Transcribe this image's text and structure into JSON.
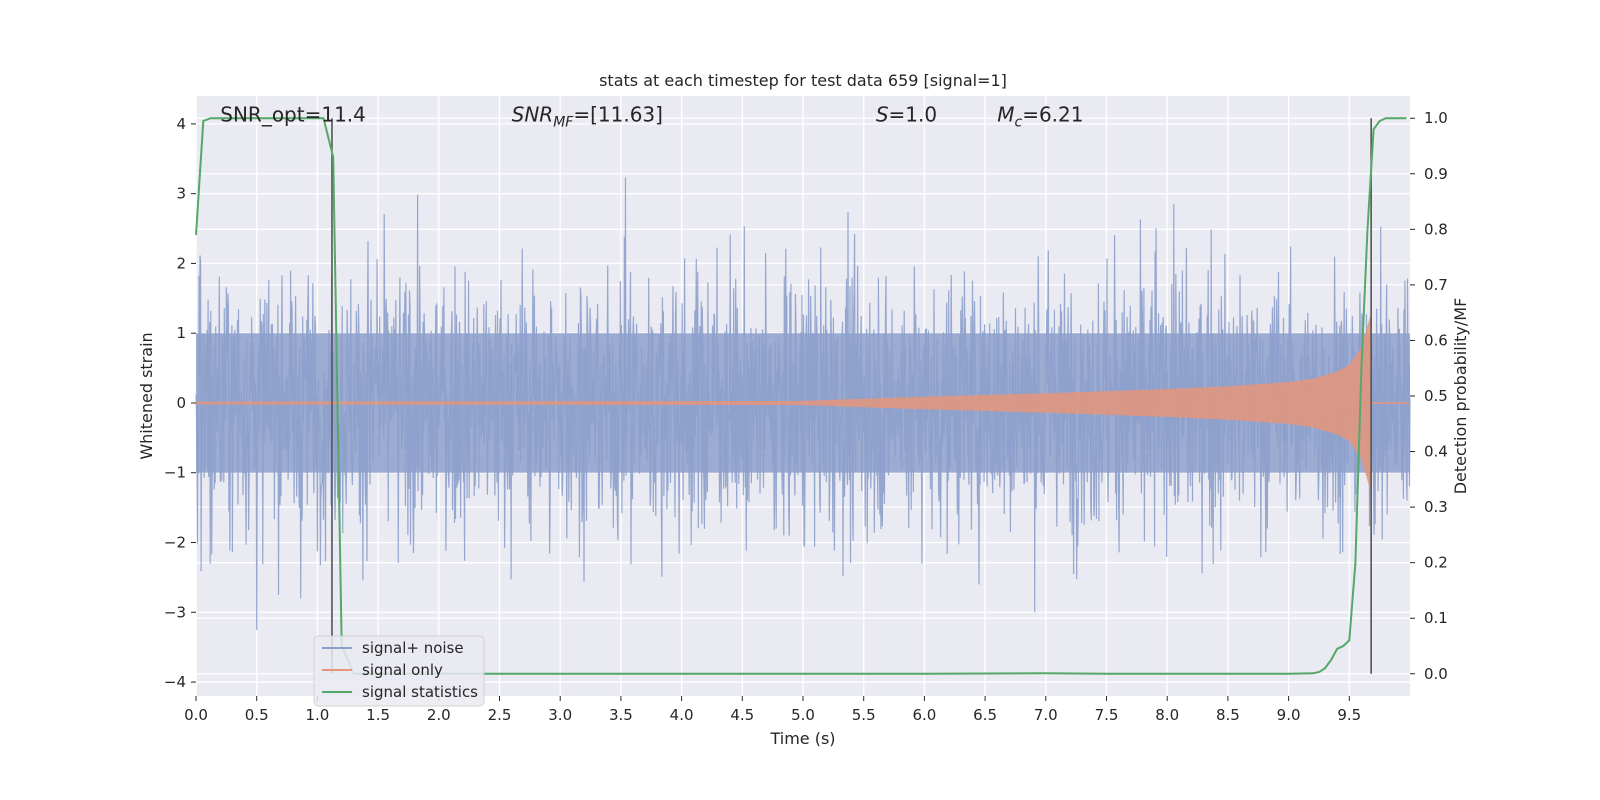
{
  "chart_data": {
    "type": "line",
    "title": "stats at each timestep for test data 659 [signal=1]",
    "xlabel": "Time (s)",
    "ylabel": "Whitened strain",
    "ylabel_right": "Detection probability/MF",
    "xlim": [
      0.0,
      10.0
    ],
    "ylim": [
      -4.2,
      4.4
    ],
    "ylim_right": [
      -0.04,
      1.04
    ],
    "xticks": [
      0.0,
      0.5,
      1.0,
      1.5,
      2.0,
      2.5,
      3.0,
      3.5,
      4.0,
      4.5,
      5.0,
      5.5,
      6.0,
      6.5,
      7.0,
      7.5,
      8.0,
      8.5,
      9.0,
      9.5
    ],
    "xtick_labels": [
      "0.0",
      "0.5",
      "1.0",
      "1.5",
      "2.0",
      "2.5",
      "3.0",
      "3.5",
      "4.0",
      "4.5",
      "5.0",
      "5.5",
      "6.0",
      "6.5",
      "7.0",
      "7.5",
      "8.0",
      "8.5",
      "9.0",
      "9.5"
    ],
    "yticks": [
      4,
      3,
      2,
      1,
      0,
      -1,
      -2,
      -3,
      -4
    ],
    "ytick_labels": [
      "4",
      "3",
      "2",
      "1",
      "0",
      "−1",
      "−2",
      "−3",
      "−4"
    ],
    "yticks_right": [
      1.0,
      0.9,
      0.8,
      0.7,
      0.6,
      0.5,
      0.4,
      0.3,
      0.2,
      0.1,
      0.0
    ],
    "ytick_right_labels": [
      "1.0",
      "0.9",
      "0.8",
      "0.7",
      "0.6",
      "0.5",
      "0.4",
      "0.3",
      "0.2",
      "0.1",
      "0.0"
    ],
    "grid": true,
    "legend_position": "lower-left",
    "series": [
      {
        "name": "signal+ noise",
        "color": "#8da0cb",
        "axis": "left",
        "description": "dense noisy strain, roughly between -3.6 and 4.0",
        "amplitude_envelope": {
          "x": [
            0.0,
            10.0
          ],
          "typical_max": 2.2,
          "peak_max": 4.0
        }
      },
      {
        "name": "signal only",
        "color": "#e5957a",
        "axis": "left",
        "envelope": {
          "x": [
            0.0,
            5.0,
            6.0,
            7.0,
            7.5,
            8.0,
            8.5,
            9.0,
            9.2,
            9.4,
            9.5,
            9.6,
            9.68
          ],
          "amplitude": [
            0.02,
            0.03,
            0.09,
            0.14,
            0.17,
            0.2,
            0.24,
            0.3,
            0.35,
            0.45,
            0.55,
            0.8,
            1.3
          ]
        }
      },
      {
        "name": "signal statistics",
        "color": "#55a868",
        "axis": "right",
        "x": [
          0.0,
          0.06,
          0.12,
          0.3,
          0.6,
          0.9,
          1.05,
          1.13,
          1.2,
          1.3,
          1.4,
          2.0,
          3.0,
          4.0,
          5.0,
          6.0,
          7.0,
          7.5,
          8.0,
          9.0,
          9.2,
          9.25,
          9.3,
          9.35,
          9.4,
          9.45,
          9.5,
          9.55,
          9.6,
          9.65,
          9.7,
          9.75,
          9.8,
          9.85,
          9.9,
          9.95,
          9.97
        ],
        "y": [
          0.79,
          0.995,
          1.0,
          1.0,
          1.0,
          1.0,
          1.0,
          0.93,
          0.05,
          0.0,
          0.0,
          0.0,
          0.0,
          0.0,
          0.0,
          0.0,
          0.001,
          0.0,
          0.0,
          0.0,
          0.001,
          0.003,
          0.01,
          0.025,
          0.045,
          0.05,
          0.06,
          0.2,
          0.55,
          0.8,
          0.98,
          0.995,
          1.0,
          1.0,
          1.0,
          1.0,
          1.0
        ]
      }
    ],
    "vertical_lines": [
      1.12,
      9.68
    ],
    "annotations": [
      {
        "label": "SNR_opt=11.4",
        "x": 0.2,
        "y": 4.15
      },
      {
        "label_italic": "SNR",
        "label_sub": "MF",
        "label_rest": "=[11.63]",
        "x": 2.6,
        "y": 4.15
      },
      {
        "label_italic": "S",
        "label_sub": "",
        "label_rest": "=1.0",
        "x": 5.6,
        "y": 4.15
      },
      {
        "label_italic": "M",
        "label_sub": "c",
        "label_rest": "=6.21",
        "x": 6.6,
        "y": 4.15
      }
    ]
  }
}
